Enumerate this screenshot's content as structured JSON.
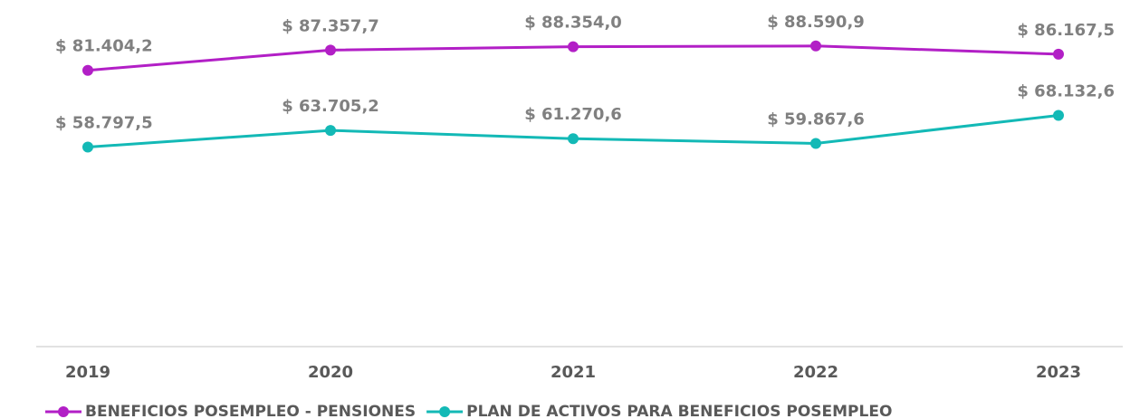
{
  "chart_data": {
    "type": "line",
    "categories": [
      "2019",
      "2020",
      "2021",
      "2022",
      "2023"
    ],
    "series": [
      {
        "name": "BENEFICIOS POSEMPLEO - PENSIONES",
        "color": "#b21fc6",
        "values": [
          81404.2,
          87357.7,
          88354.0,
          88590.9,
          86167.5
        ],
        "value_labels": [
          "$ 81.404,2",
          "$ 87.357,7",
          "$ 88.354,0",
          "$ 88.590,9",
          "$ 86.167,5"
        ]
      },
      {
        "name": "PLAN DE ACTIVOS PARA BENEFICIOS POSEMPLEO",
        "color": "#13b9b6",
        "values": [
          58797.5,
          63705.2,
          61270.6,
          59867.6,
          68132.6
        ],
        "value_labels": [
          "$ 58.797,5",
          "$ 63.705,2",
          "$ 61.270,6",
          "$ 59.867,6",
          "$ 68.132,6"
        ]
      }
    ],
    "ylim": [
      0,
      100000
    ],
    "legend": "bottom"
  }
}
